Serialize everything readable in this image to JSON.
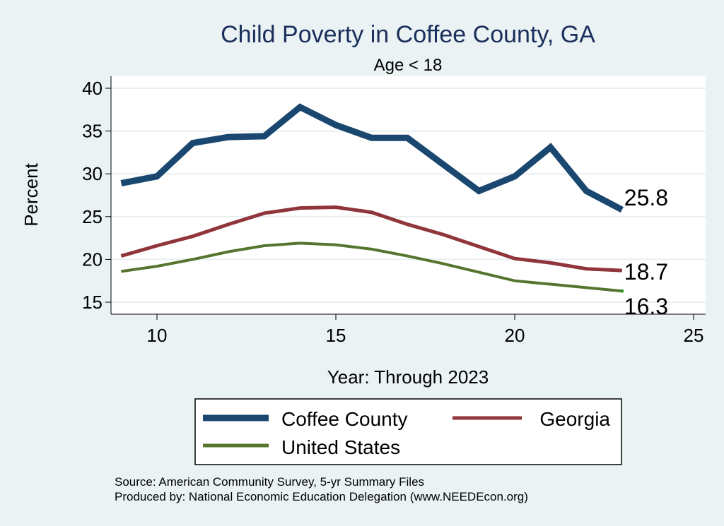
{
  "chart_data": {
    "type": "line",
    "title": "Child Poverty in Coffee County, GA",
    "subtitle": "Age < 18",
    "xlabel": "Year: Through 2023",
    "ylabel": "Percent",
    "xlim": [
      9,
      25
    ],
    "ylim": [
      14,
      40.5
    ],
    "x_ticks": [
      10,
      15,
      20,
      25
    ],
    "y_ticks": [
      15,
      20,
      25,
      30,
      35,
      40
    ],
    "x": [
      9,
      10,
      11,
      12,
      13,
      14,
      15,
      16,
      17,
      18,
      19,
      20,
      21,
      22,
      23
    ],
    "series": [
      {
        "name": "Coffee County",
        "color": "#1a476f",
        "values": [
          28.9,
          29.7,
          33.6,
          34.3,
          34.4,
          37.8,
          35.7,
          34.2,
          34.2,
          31.1,
          28.0,
          29.7,
          33.1,
          28.0,
          25.8
        ],
        "end_label": "25.8"
      },
      {
        "name": "Georgia",
        "color": "#90353b",
        "values": [
          20.4,
          21.6,
          22.7,
          24.1,
          25.4,
          26.0,
          26.1,
          25.5,
          24.1,
          22.9,
          21.5,
          20.1,
          19.6,
          18.9,
          18.7
        ],
        "end_label": "18.7"
      },
      {
        "name": "United States",
        "color": "#55752f",
        "values": [
          18.6,
          19.2,
          20.0,
          20.9,
          21.6,
          21.9,
          21.7,
          21.2,
          20.4,
          19.5,
          18.5,
          17.5,
          17.1,
          16.7,
          16.3
        ],
        "end_label": "16.3"
      }
    ],
    "legend_position": "bottom",
    "source": "Source: American Community Survey, 5-yr Summary Files",
    "produced_by": "Produced by: National Economic Education Delegation (www.NEEDEcon.org)"
  }
}
